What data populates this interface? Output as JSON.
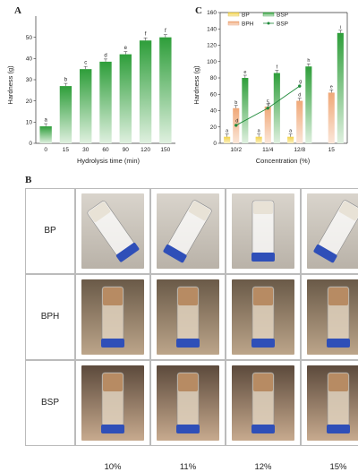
{
  "panels": {
    "a_letter": "A",
    "b_letter": "B",
    "c_letter": "C"
  },
  "chart_data": [
    {
      "type": "bar",
      "panel": "A",
      "title": "",
      "xlabel": "Hydrolysis time (min)",
      "ylabel": "Hardness (g)",
      "ylim": [
        0,
        60
      ],
      "yticks": [
        0,
        10,
        20,
        30,
        40,
        50
      ],
      "categories": [
        "0",
        "15",
        "30",
        "60",
        "90",
        "120",
        "150"
      ],
      "values": [
        8,
        27,
        35,
        38.5,
        42,
        48.5,
        50
      ],
      "letters": [
        "a",
        "b",
        "c",
        "d",
        "e",
        "f",
        "f"
      ],
      "color": "#2e9e3a"
    },
    {
      "type": "bar",
      "panel": "C",
      "title": "",
      "xlabel": "Concentration (%)",
      "ylabel": "Hardness (g)",
      "ylim": [
        0,
        160
      ],
      "yticks": [
        0,
        20,
        40,
        60,
        80,
        100,
        120,
        140,
        160
      ],
      "categories": [
        "10/2",
        "11/4",
        "12/8",
        "15"
      ],
      "legend": [
        "BP",
        "BSP",
        "BPH",
        "BSP"
      ],
      "series": [
        {
          "name": "BP",
          "values": [
            8,
            8,
            8,
            null
          ],
          "letters": [
            "a",
            "a",
            "a",
            ""
          ],
          "color": "#f2d24a"
        },
        {
          "name": "BPH",
          "values": [
            43,
            45,
            52,
            62
          ],
          "letters": [
            "b",
            "c",
            "d",
            "e"
          ],
          "color": "#f0a878"
        },
        {
          "name": "BSP",
          "values": [
            80,
            86,
            94,
            135
          ],
          "letters": [
            "e",
            "f",
            "h",
            "i"
          ],
          "color": "#2e9e3a"
        }
      ],
      "line": {
        "name": "BSP",
        "values": [
          22,
          43,
          70
        ],
        "letters": [
          "d",
          "e",
          "g"
        ],
        "color": "#1f8a3a"
      }
    }
  ],
  "grid": {
    "rows": [
      "BP",
      "BPH",
      "BSP"
    ],
    "columns": [
      "10%",
      "11%",
      "12%",
      "15%"
    ]
  }
}
